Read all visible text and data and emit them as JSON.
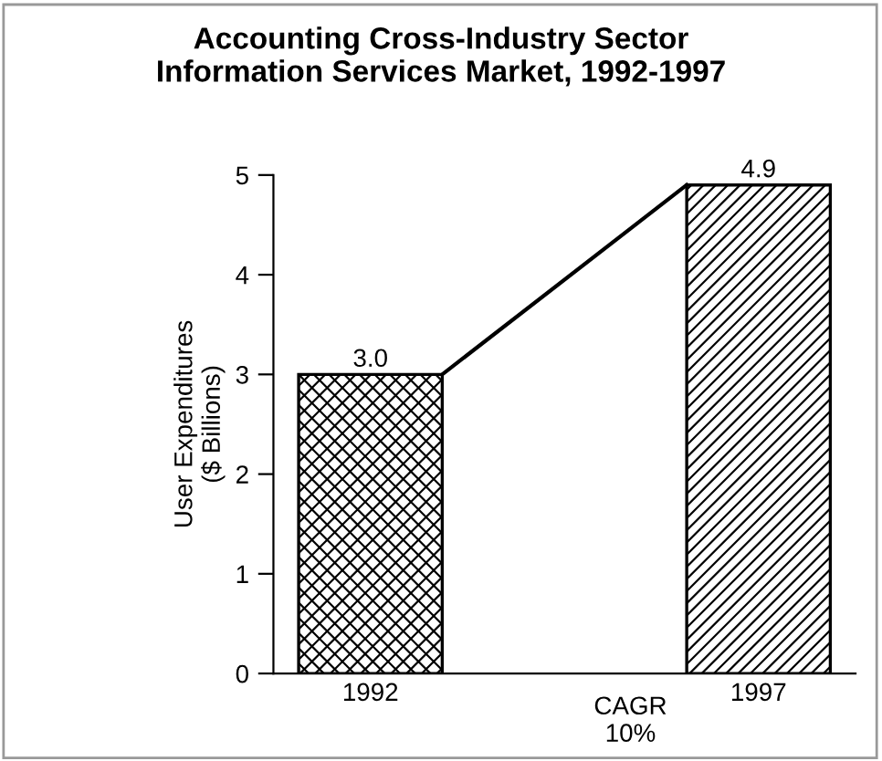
{
  "chart_data": {
    "type": "bar",
    "title": "Accounting Cross-Industry Sector\nInformation Services Market, 1992-1997",
    "ylabel": "User Expenditures\n($ Billions)",
    "categories": [
      "1992",
      "1997"
    ],
    "values": [
      3.0,
      4.9
    ],
    "colors": [
      "#000000",
      "#000000"
    ],
    "ylim": [
      0,
      5
    ],
    "yticks": [
      0,
      1,
      2,
      3,
      4,
      5
    ],
    "grid": false,
    "value_labels": [
      "3.0",
      "4.9"
    ],
    "annotations": [
      "CAGR\n10%"
    ]
  }
}
